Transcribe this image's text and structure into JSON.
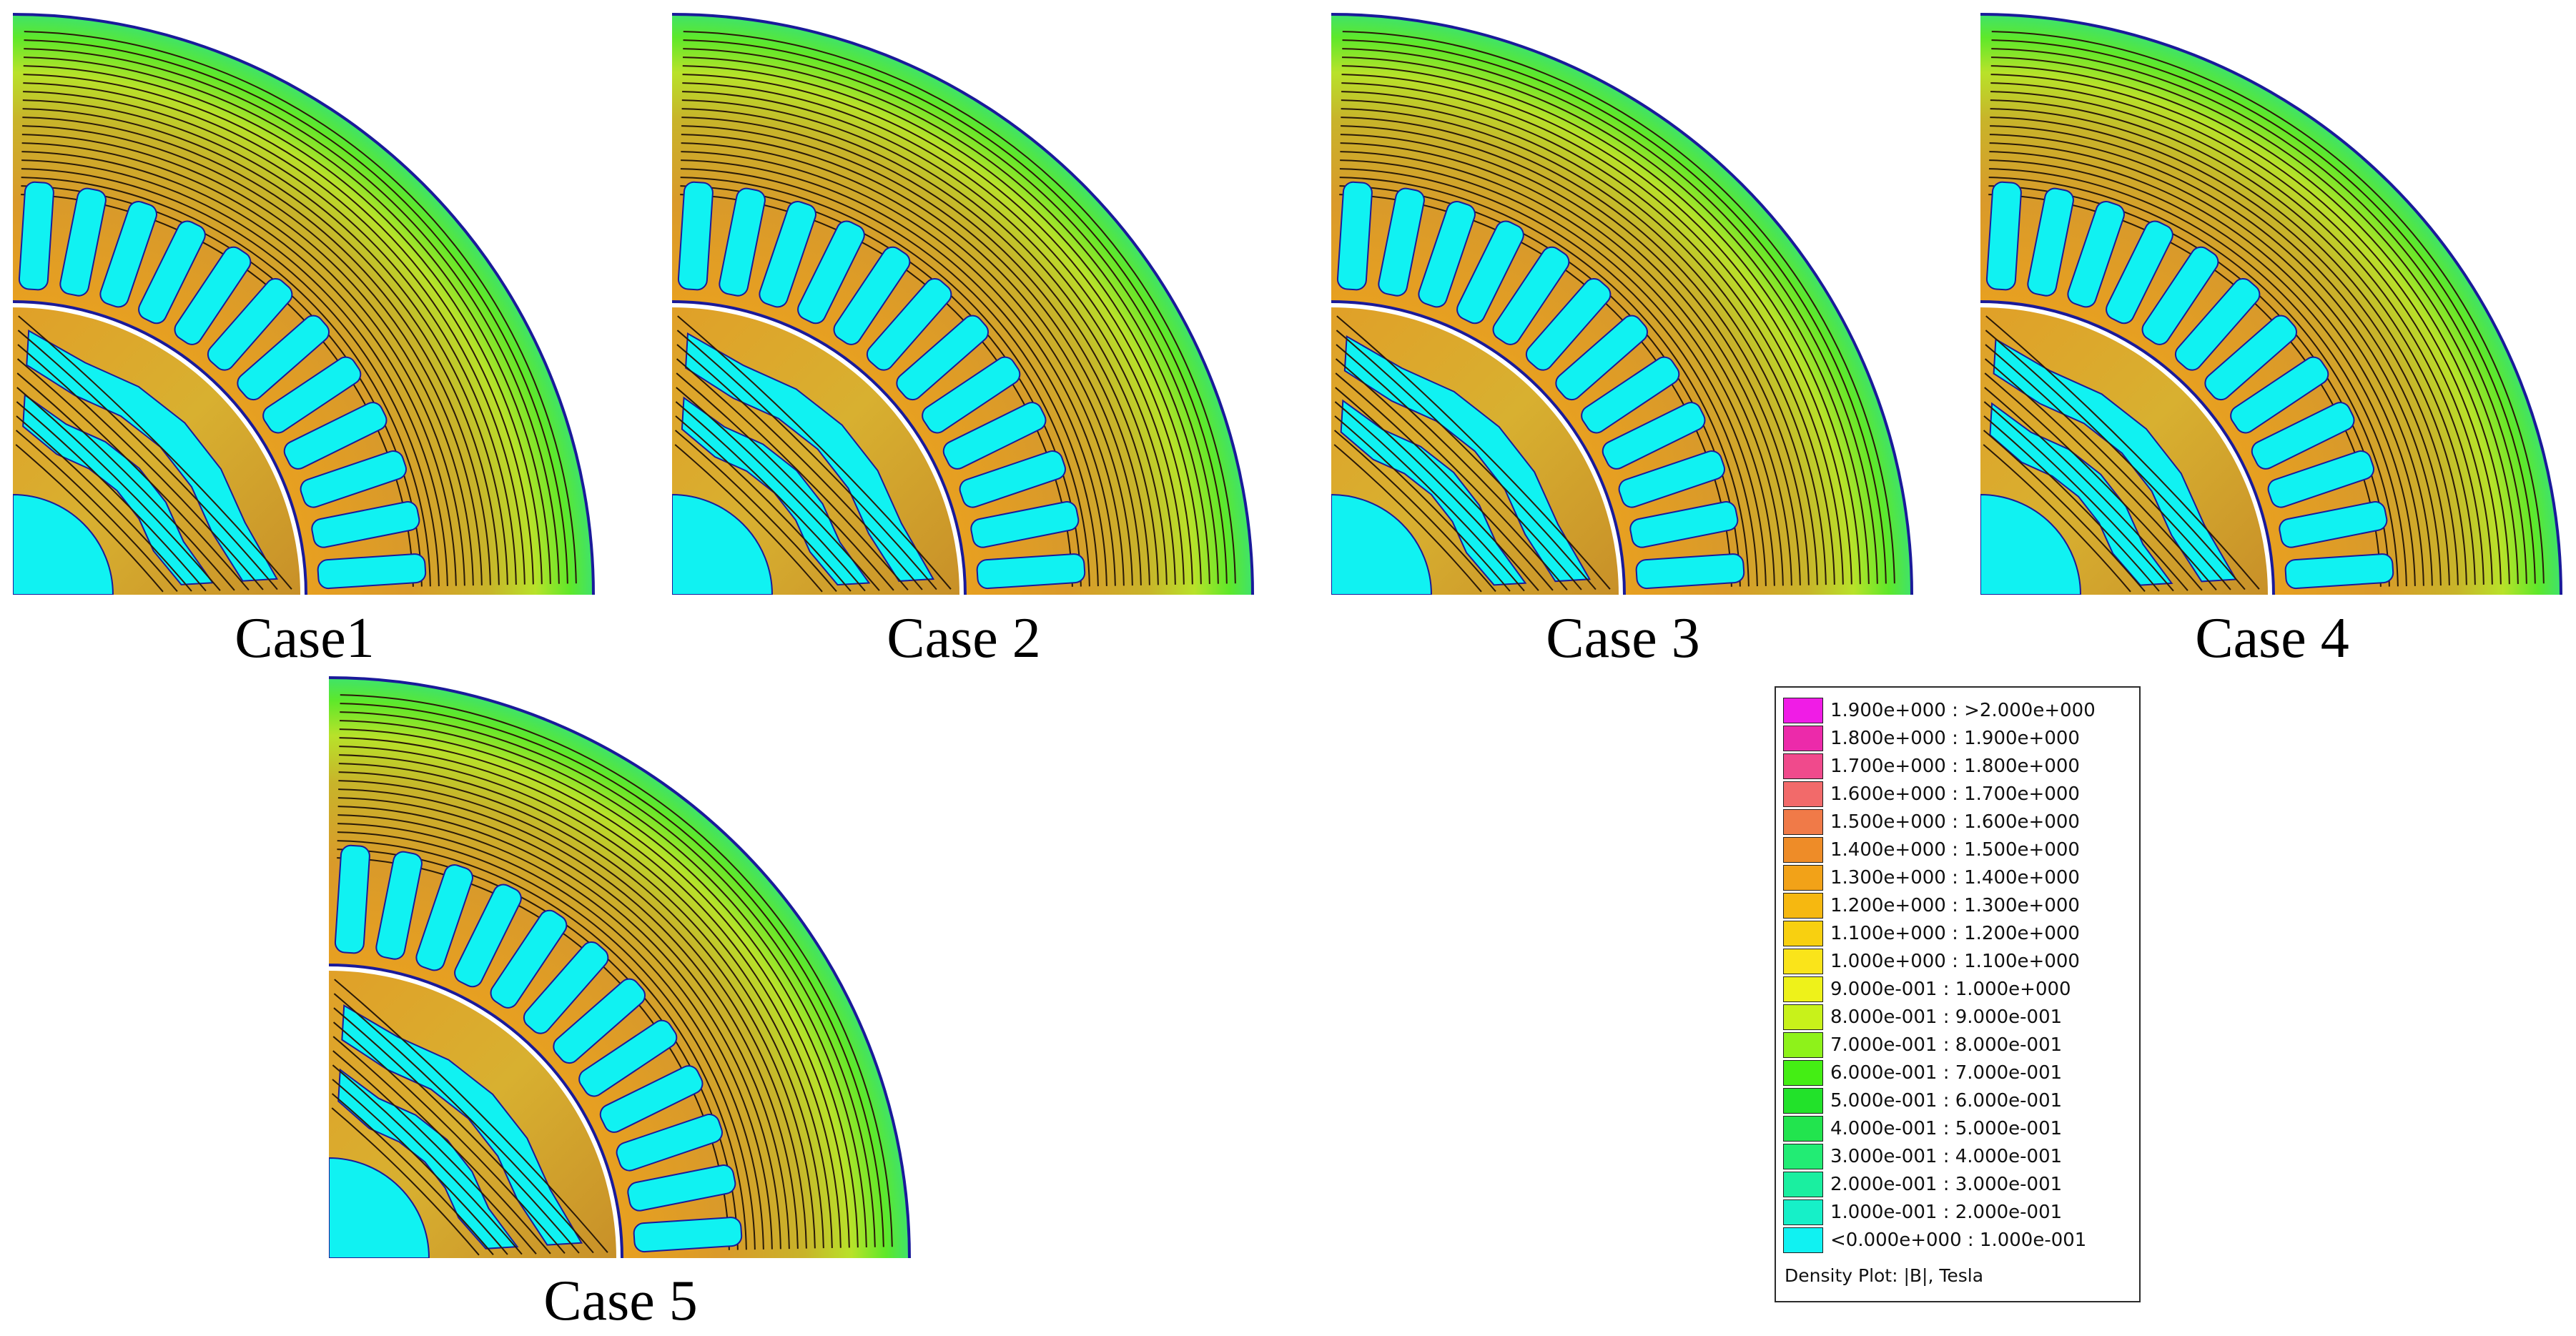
{
  "panels": [
    {
      "id": "case1",
      "caption": "Case1"
    },
    {
      "id": "case2",
      "caption": "Case 2"
    },
    {
      "id": "case3",
      "caption": "Case 3"
    },
    {
      "id": "case4",
      "caption": "Case 4"
    },
    {
      "id": "case5",
      "caption": "Case 5"
    }
  ],
  "legend": {
    "caption": "Density Plot: |B|, Tesla",
    "entries": [
      {
        "label": "1.900e+000 : >2.000e+000",
        "color": "#f01ce6"
      },
      {
        "label": "1.800e+000 : 1.900e+000",
        "color": "#ec2aaa"
      },
      {
        "label": "1.700e+000 : 1.800e+000",
        "color": "#f04a8c"
      },
      {
        "label": "1.600e+000 : 1.700e+000",
        "color": "#f26a6a"
      },
      {
        "label": "1.500e+000 : 1.600e+000",
        "color": "#f07a48"
      },
      {
        "label": "1.400e+000 : 1.500e+000",
        "color": "#ee8c28"
      },
      {
        "label": "1.300e+000 : 1.400e+000",
        "color": "#f2a218"
      },
      {
        "label": "1.200e+000 : 1.300e+000",
        "color": "#f6b810"
      },
      {
        "label": "1.100e+000 : 1.200e+000",
        "color": "#f8d010"
      },
      {
        "label": "1.000e+000 : 1.100e+000",
        "color": "#fae41a"
      },
      {
        "label": "9.000e-001 : 1.000e+000",
        "color": "#eef21a"
      },
      {
        "label": "8.000e-001 : 9.000e-001",
        "color": "#c8f21a"
      },
      {
        "label": "7.000e-001 : 8.000e-001",
        "color": "#8ef21a"
      },
      {
        "label": "6.000e-001 : 7.000e-001",
        "color": "#44ee14"
      },
      {
        "label": "5.000e-001 : 6.000e-001",
        "color": "#22e22a"
      },
      {
        "label": "4.000e-001 : 5.000e-001",
        "color": "#22e44e"
      },
      {
        "label": "3.000e-001 : 4.000e-001",
        "color": "#22ec74"
      },
      {
        "label": "2.000e-001 : 3.000e-001",
        "color": "#1aefa0"
      },
      {
        "label": "1.000e-001 : 2.000e-001",
        "color": "#16f0c8"
      },
      {
        "label": "<0.000e+000 : 1.000e-001",
        "color": "#10f2f2"
      }
    ]
  }
}
